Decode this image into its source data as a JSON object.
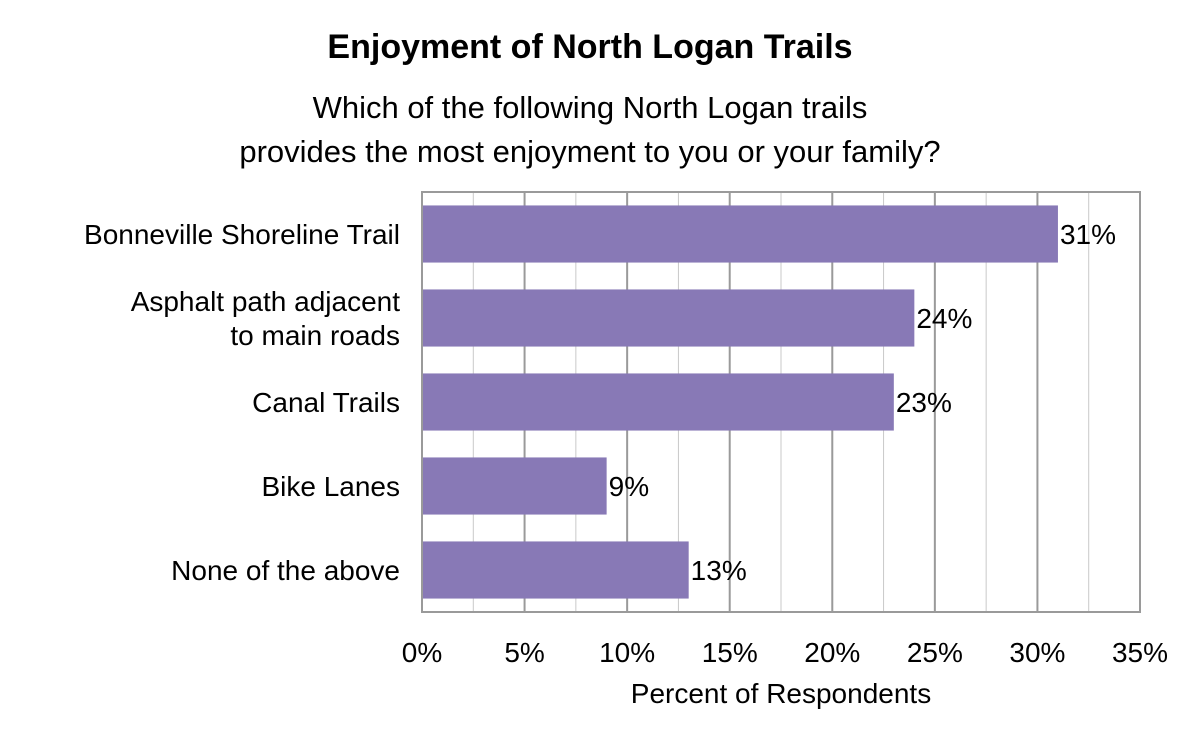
{
  "chart_data": {
    "type": "bar",
    "orientation": "horizontal",
    "title": "Enjoyment of North Logan Trails",
    "subtitle": "Which of the following North Logan trails\nprovides the most enjoyment to you or your family?",
    "categories": [
      [
        "Bonneville Shoreline Trail"
      ],
      [
        "Asphalt path adjacent",
        "to main roads"
      ],
      [
        "Canal Trails"
      ],
      [
        "Bike Lanes"
      ],
      [
        "None of the above"
      ]
    ],
    "values": [
      31,
      24,
      23,
      9,
      13
    ],
    "data_labels": [
      "31%",
      "24%",
      "23%",
      "9%",
      "13%"
    ],
    "xlabel": "Percent of Respondents",
    "xlim": [
      0,
      35
    ],
    "xticks": [
      0,
      5,
      10,
      15,
      20,
      25,
      30,
      35
    ],
    "xtick_labels": [
      "0%",
      "5%",
      "10%",
      "15%",
      "20%",
      "25%",
      "30%",
      "35%"
    ],
    "grid": true,
    "bar_color": "#8879b6"
  }
}
